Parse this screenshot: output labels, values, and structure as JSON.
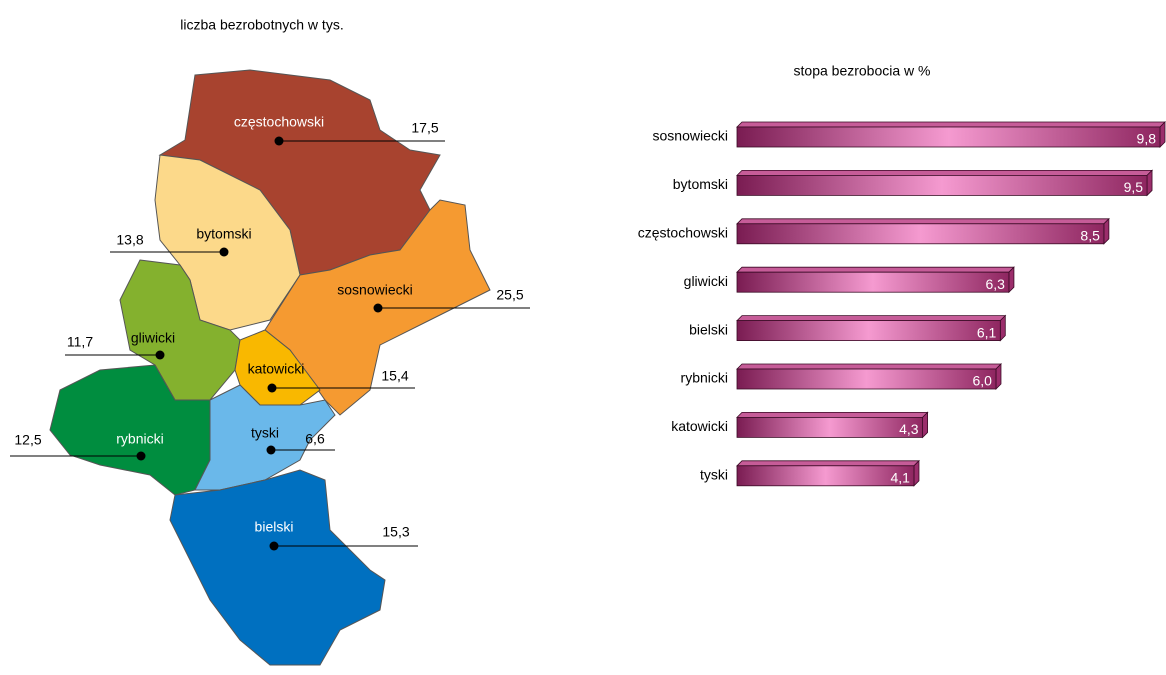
{
  "map": {
    "title": "liczba bezrobotnych w tys.",
    "regions": [
      {
        "name": "częstochowski",
        "value": 17.5,
        "value_label": "17,5",
        "color": "#a8432f"
      },
      {
        "name": "bytomski",
        "value": 13.8,
        "value_label": "13,8",
        "color": "#fcd98a"
      },
      {
        "name": "sosnowiecki",
        "value": 25.5,
        "value_label": "25,5",
        "color": "#f59a31"
      },
      {
        "name": "gliwicki",
        "value": 11.7,
        "value_label": "11,7",
        "color": "#84b12e"
      },
      {
        "name": "katowicki",
        "value": 15.4,
        "value_label": "15,4",
        "color": "#f9b800"
      },
      {
        "name": "rybnicki",
        "value": 12.5,
        "value_label": "12,5",
        "color": "#008d3f"
      },
      {
        "name": "tyski",
        "value": 6.6,
        "value_label": "6,6",
        "color": "#6ab8ea"
      },
      {
        "name": "bielski",
        "value": 15.3,
        "value_label": "15,3",
        "color": "#0070c0"
      }
    ]
  },
  "chart_data": {
    "type": "bar",
    "orientation": "horizontal",
    "title": "stopa bezrobocia w %",
    "categories": [
      "sosnowiecki",
      "bytomski",
      "częstochowski",
      "gliwicki",
      "bielski",
      "rybnicki",
      "katowicki",
      "tyski"
    ],
    "values": [
      9.8,
      9.5,
      8.5,
      6.3,
      6.1,
      6.0,
      4.3,
      4.1
    ],
    "value_labels": [
      "9,8",
      "9,5",
      "8,5",
      "6,3",
      "6,1",
      "6,0",
      "4,3",
      "4,1"
    ],
    "color": "#9b2d6b"
  }
}
